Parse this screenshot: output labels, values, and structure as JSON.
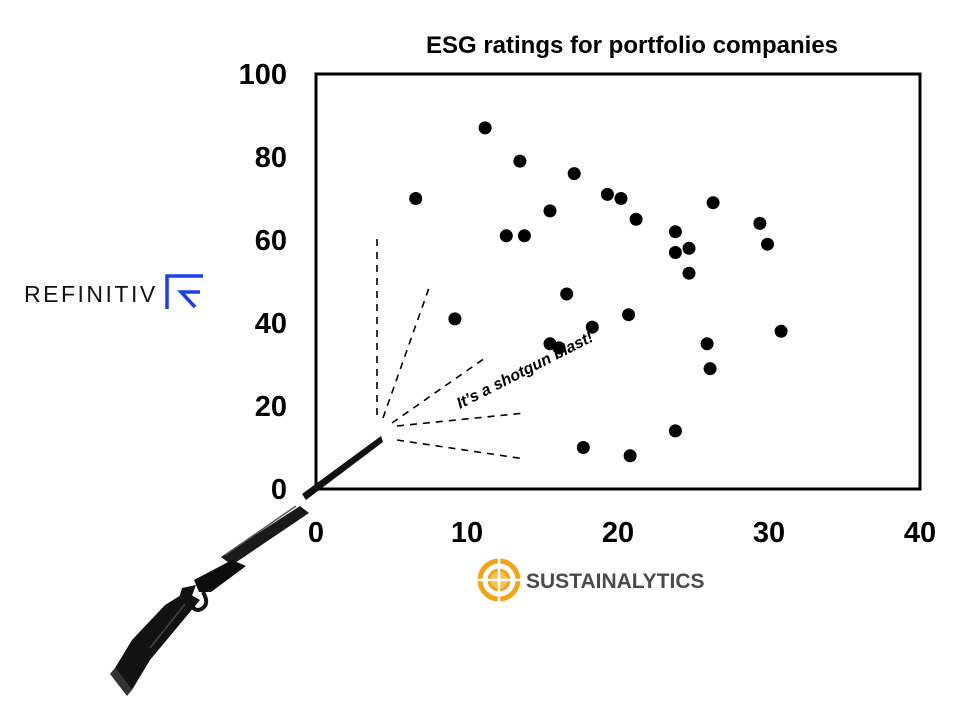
{
  "chart_data": {
    "type": "scatter",
    "title": "ESG ratings for portfolio companies",
    "xlabel": "",
    "ylabel": "",
    "xlim": [
      0,
      40
    ],
    "ylim": [
      0,
      100
    ],
    "xticks": [
      "0",
      "10",
      "20",
      "30",
      "40"
    ],
    "yticks": [
      "0",
      "20",
      "40",
      "60",
      "80",
      "100"
    ],
    "grid": false,
    "points": [
      {
        "x": 6.6,
        "y": 70
      },
      {
        "x": 9.2,
        "y": 41
      },
      {
        "x": 11.2,
        "y": 87
      },
      {
        "x": 12.6,
        "y": 61
      },
      {
        "x": 13.5,
        "y": 79
      },
      {
        "x": 13.8,
        "y": 61
      },
      {
        "x": 15.5,
        "y": 67
      },
      {
        "x": 15.5,
        "y": 35
      },
      {
        "x": 16.1,
        "y": 34
      },
      {
        "x": 16.6,
        "y": 47
      },
      {
        "x": 17.1,
        "y": 76
      },
      {
        "x": 17.7,
        "y": 10
      },
      {
        "x": 18.3,
        "y": 39
      },
      {
        "x": 19.3,
        "y": 71
      },
      {
        "x": 20.2,
        "y": 70
      },
      {
        "x": 20.7,
        "y": 42
      },
      {
        "x": 20.8,
        "y": 8
      },
      {
        "x": 21.2,
        "y": 65
      },
      {
        "x": 23.8,
        "y": 62
      },
      {
        "x": 23.8,
        "y": 57
      },
      {
        "x": 23.8,
        "y": 14
      },
      {
        "x": 24.7,
        "y": 58
      },
      {
        "x": 24.7,
        "y": 52
      },
      {
        "x": 25.9,
        "y": 35
      },
      {
        "x": 26.1,
        "y": 29
      },
      {
        "x": 26.3,
        "y": 69
      },
      {
        "x": 29.4,
        "y": 64
      },
      {
        "x": 29.9,
        "y": 59
      },
      {
        "x": 30.8,
        "y": 38
      }
    ],
    "annotation": "It’s a shotgun blast!"
  },
  "logos": {
    "y_axis_source": "REFINITIV",
    "x_axis_source": "SUSTAINALYTICS"
  },
  "colors": {
    "points": "#000000",
    "refinitiv_blue": "#1d3fe6",
    "sustainalytics_gold": "#f2a31b",
    "sustainalytics_text": "#4b4b4b"
  },
  "icons": {
    "shotgun": "shotgun-icon",
    "refinitiv_logo": "refinitiv-logo-icon",
    "sustainalytics_logo": "sustainalytics-target-icon"
  }
}
